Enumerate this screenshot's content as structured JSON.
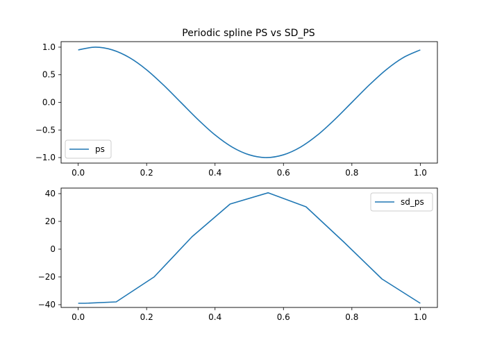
{
  "chart_data": [
    {
      "type": "line",
      "title": "Periodic spline PS vs SD_PS",
      "xlabel": "",
      "ylabel": "",
      "xlim": [
        -0.05,
        1.05
      ],
      "ylim": [
        -1.1,
        1.1
      ],
      "xticks": [
        0.0,
        0.2,
        0.4,
        0.6,
        0.8,
        1.0
      ],
      "xtick_labels": [
        "0.0",
        "0.2",
        "0.4",
        "0.6",
        "0.8",
        "1.0"
      ],
      "yticks": [
        1.0,
        0.5,
        0.0,
        -0.5,
        -1.0
      ],
      "ytick_labels": [
        "1.0",
        "0.5",
        "0.0",
        "−0.5",
        "−1.0"
      ],
      "grid": false,
      "legend_position": "lower-left",
      "series": [
        {
          "name": "ps",
          "color": "#1f77b4",
          "x": [
            0.0,
            0.05,
            0.1,
            0.15,
            0.2,
            0.25,
            0.3,
            0.35,
            0.4,
            0.45,
            0.5,
            0.55,
            0.6,
            0.65,
            0.7,
            0.75,
            0.8,
            0.85,
            0.9,
            0.95,
            1.0
          ],
          "y": [
            0.95,
            1.0,
            0.95,
            0.81,
            0.59,
            0.31,
            0.0,
            -0.31,
            -0.59,
            -0.81,
            -0.95,
            -1.0,
            -0.95,
            -0.81,
            -0.59,
            -0.31,
            0.0,
            0.31,
            0.59,
            0.81,
            0.95
          ]
        }
      ]
    },
    {
      "type": "line",
      "title": "",
      "xlabel": "",
      "ylabel": "",
      "xlim": [
        -0.05,
        1.05
      ],
      "ylim": [
        -42,
        44
      ],
      "xticks": [
        0.0,
        0.2,
        0.4,
        0.6,
        0.8,
        1.0
      ],
      "xtick_labels": [
        "0.0",
        "0.2",
        "0.4",
        "0.6",
        "0.8",
        "1.0"
      ],
      "yticks": [
        40,
        20,
        0,
        -20,
        -40
      ],
      "ytick_labels": [
        "40",
        "20",
        "0",
        "−20",
        "−40"
      ],
      "grid": false,
      "legend_position": "upper-right",
      "series": [
        {
          "name": "sd_ps",
          "color": "#1f77b4",
          "x": [
            0.0,
            0.02,
            0.111,
            0.222,
            0.333,
            0.444,
            0.555,
            0.666,
            0.777,
            0.888,
            1.0
          ],
          "y": [
            -39,
            -39,
            -38,
            -20,
            9,
            32.5,
            40.6,
            30.5,
            5,
            -21.5,
            -39
          ]
        }
      ]
    }
  ]
}
